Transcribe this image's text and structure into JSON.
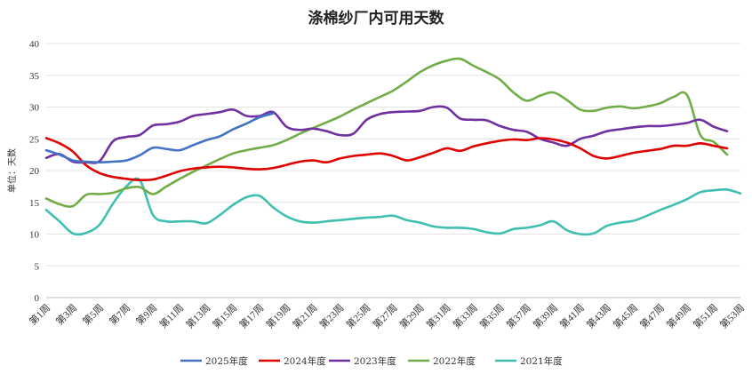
{
  "chart_data": {
    "type": "line",
    "title": "涤棉纱厂内可用天数",
    "ylabel": "单位：天数",
    "ylim": [
      0,
      40
    ],
    "yticks": [
      0,
      5,
      10,
      15,
      20,
      25,
      30,
      35,
      40
    ],
    "grid": true,
    "legend_position": "bottom",
    "x_tick_labels": [
      "第1周",
      "第3周",
      "第5周",
      "第7周",
      "第9周",
      "第11周",
      "第13周",
      "第15周",
      "第17周",
      "第19周",
      "第21周",
      "第23周",
      "第25周",
      "第27周",
      "第29周",
      "第31周",
      "第33周",
      "第35周",
      "第37周",
      "第39周",
      "第41周",
      "第43周",
      "第45周",
      "第47周",
      "第49周",
      "第51周",
      "第53周"
    ],
    "series": [
      {
        "name": "2025年度",
        "color": "#4472C4",
        "x": [
          1,
          2,
          3,
          4,
          5,
          6,
          7,
          8,
          9,
          10,
          11,
          12,
          13,
          14,
          15,
          16,
          17,
          18
        ],
        "values": [
          23.2,
          22.5,
          21.6,
          21.4,
          21.3,
          21.4,
          21.6,
          22.4,
          23.6,
          23.4,
          23.2,
          24.0,
          24.8,
          25.4,
          26.5,
          27.4,
          28.4,
          29.0
        ]
      },
      {
        "name": "2024年度",
        "color": "#E00000",
        "x": [
          1,
          2,
          3,
          4,
          5,
          6,
          7,
          8,
          9,
          10,
          11,
          12,
          13,
          14,
          15,
          16,
          17,
          18,
          19,
          20,
          21,
          22,
          23,
          24,
          25,
          26,
          27,
          28,
          29,
          30,
          31,
          32,
          33,
          34,
          35,
          36,
          37,
          38,
          39,
          40,
          41,
          42,
          43,
          44,
          45,
          46,
          47,
          48,
          49,
          50,
          51,
          52
        ],
        "values": [
          25.1,
          24.3,
          23.0,
          20.8,
          19.6,
          19.0,
          18.7,
          18.5,
          18.6,
          19.2,
          19.9,
          20.3,
          20.5,
          20.6,
          20.5,
          20.3,
          20.2,
          20.4,
          20.9,
          21.4,
          21.6,
          21.3,
          21.9,
          22.3,
          22.5,
          22.7,
          22.3,
          21.6,
          22.1,
          22.8,
          23.5,
          23.1,
          23.8,
          24.3,
          24.7,
          24.9,
          24.8,
          25.1,
          24.9,
          24.4,
          23.5,
          22.3,
          21.9,
          22.3,
          22.8,
          23.1,
          23.4,
          23.9,
          23.9,
          24.3,
          23.9,
          23.5
        ]
      },
      {
        "name": "2023年度",
        "color": "#7030A0",
        "x": [
          1,
          2,
          3,
          4,
          5,
          6,
          7,
          8,
          9,
          10,
          11,
          12,
          13,
          14,
          15,
          16,
          17,
          18,
          19,
          20,
          21,
          22,
          23,
          24,
          25,
          26,
          27,
          28,
          29,
          30,
          31,
          32,
          33,
          34,
          35,
          36,
          37,
          38,
          39,
          40,
          41,
          42,
          43,
          44,
          45,
          46,
          47,
          48,
          49,
          50,
          51,
          52
        ],
        "values": [
          22.0,
          22.6,
          21.4,
          21.3,
          21.5,
          24.6,
          25.3,
          25.6,
          27.1,
          27.3,
          27.7,
          28.6,
          28.9,
          29.2,
          29.6,
          28.6,
          28.6,
          29.2,
          26.9,
          26.4,
          26.6,
          26.2,
          25.6,
          25.8,
          28.0,
          28.9,
          29.2,
          29.3,
          29.4,
          30.0,
          29.9,
          28.2,
          28.0,
          27.9,
          27.0,
          26.4,
          26.1,
          25.0,
          24.4,
          23.9,
          25.0,
          25.5,
          26.2,
          26.5,
          26.8,
          27.0,
          27.0,
          27.2,
          27.5,
          28.0,
          26.9,
          26.2
        ]
      },
      {
        "name": "2022年度",
        "color": "#70AD47",
        "x": [
          1,
          2,
          3,
          4,
          5,
          6,
          7,
          8,
          9,
          10,
          11,
          12,
          13,
          14,
          15,
          16,
          17,
          18,
          19,
          20,
          21,
          22,
          23,
          24,
          25,
          26,
          27,
          28,
          29,
          30,
          31,
          32,
          33,
          34,
          35,
          36,
          37,
          38,
          39,
          40,
          41,
          42,
          43,
          44,
          45,
          46,
          47,
          48,
          49,
          50,
          51,
          52
        ],
        "values": [
          15.6,
          14.7,
          14.4,
          16.2,
          16.3,
          16.5,
          17.2,
          17.4,
          16.3,
          17.5,
          18.7,
          19.8,
          20.8,
          21.8,
          22.7,
          23.2,
          23.6,
          24.0,
          24.8,
          25.8,
          26.7,
          27.6,
          28.5,
          29.6,
          30.6,
          31.6,
          32.6,
          34.0,
          35.5,
          36.6,
          37.3,
          37.6,
          36.5,
          35.5,
          34.3,
          32.3,
          31.0,
          31.8,
          32.3,
          31.1,
          29.6,
          29.4,
          29.9,
          30.1,
          29.8,
          30.1,
          30.6,
          31.6,
          31.9,
          25.6,
          24.5,
          22.5
        ]
      },
      {
        "name": "2021年度",
        "color": "#3FBFB0",
        "x": [
          1,
          2,
          3,
          4,
          5,
          6,
          7,
          8,
          9,
          10,
          11,
          12,
          13,
          14,
          15,
          16,
          17,
          18,
          19,
          20,
          21,
          22,
          23,
          24,
          25,
          26,
          27,
          28,
          29,
          30,
          31,
          32,
          33,
          34,
          35,
          36,
          37,
          38,
          39,
          40,
          41,
          42,
          43,
          44,
          45,
          46,
          47,
          48,
          49,
          50,
          51,
          52,
          53
        ],
        "values": [
          13.8,
          12.0,
          10.1,
          10.2,
          11.5,
          14.8,
          17.5,
          18.5,
          13.0,
          12.0,
          12.0,
          12.0,
          11.7,
          13.0,
          14.6,
          15.8,
          16.0,
          14.2,
          12.8,
          12.0,
          11.8,
          12.0,
          12.2,
          12.4,
          12.6,
          12.7,
          12.9,
          12.2,
          11.8,
          11.2,
          11.0,
          11.0,
          10.8,
          10.3,
          10.1,
          10.8,
          11.0,
          11.4,
          12.0,
          10.6,
          10.0,
          10.1,
          11.3,
          11.8,
          12.1,
          12.9,
          13.8,
          14.6,
          15.5,
          16.6,
          16.9,
          17.0,
          16.4
        ]
      }
    ]
  }
}
